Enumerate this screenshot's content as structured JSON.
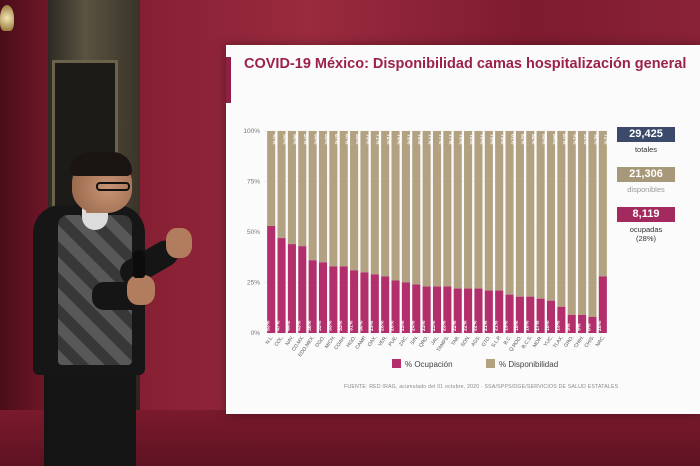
{
  "slide": {
    "title": "COVID-19 México: Disponibilidad camas hospitalización general",
    "source": "FUENTE: RED IRAG, acumulado del 01 octubre, 2020 · SSA/SPPS/DGE/SERVICIOS DE SALUD ESTATALES"
  },
  "stats": {
    "totales": {
      "value": "29,425",
      "label": "totales"
    },
    "disponibles": {
      "value": "21,306",
      "label": "disponibles"
    },
    "ocupadas": {
      "value": "8,119",
      "label": "ocupadas",
      "sublabel": "(28%)"
    }
  },
  "colors": {
    "ocupacion": "#b22f6c",
    "disponibilidad": "#b3a282",
    "title": "#9c2148",
    "totales_box": "#3b4a6b",
    "disponibles_box": "#a8987a",
    "ocupadas_box": "#a32a5e"
  },
  "chart_data": {
    "type": "bar",
    "stacked": true,
    "ylim": [
      0,
      100
    ],
    "yticks": [
      "0%",
      "25%",
      "50%",
      "75%",
      "100%"
    ],
    "legend": [
      "% Ocupación",
      "% Disponibilidad"
    ],
    "legend_position": "bottom",
    "categories": [
      "N.L.",
      "COL.",
      "NAY.",
      "CD.MX.",
      "EDO.MEX.",
      "DGO.",
      "MICH.",
      "COAH.",
      "HGO.",
      "CAMP.",
      "OAX.",
      "VER.",
      "PUE.",
      "ZAC.",
      "SIN.",
      "QRO.",
      "JAL.",
      "TAMPS.",
      "TAB.",
      "SON.",
      "AGS.",
      "GTO.",
      "S.L.P.",
      "B.C.",
      "Q.ROO.",
      "B.C.S.",
      "MOR.",
      "YUC.",
      "TLAX.",
      "GRO.",
      "CHIH.",
      "CHIS.",
      "NAC."
    ],
    "series": [
      {
        "name": "% Ocupación",
        "values": [
          53,
          47,
          44,
          43,
          36,
          35,
          33,
          33,
          31,
          30,
          29,
          28,
          26,
          25,
          24,
          23,
          23,
          23,
          22,
          22,
          22,
          21,
          21,
          19,
          18,
          18,
          17,
          16,
          13,
          9,
          9,
          8,
          28
        ]
      },
      {
        "name": "% Disponibilidad",
        "values": [
          47,
          53,
          56,
          57,
          64,
          65,
          67,
          67,
          69,
          70,
          71,
          72,
          74,
          75,
          76,
          77,
          77,
          77,
          78,
          78,
          78,
          79,
          79,
          81,
          82,
          82,
          83,
          84,
          87,
          91,
          91,
          92,
          72
        ]
      }
    ]
  }
}
